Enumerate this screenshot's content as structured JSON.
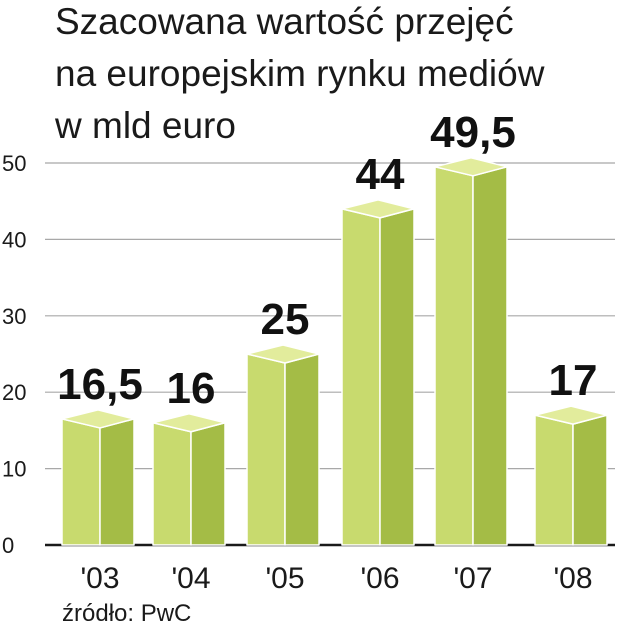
{
  "chart_data": {
    "type": "bar",
    "title_lines": [
      "Szacowana wartość przejęć",
      "na europejskim rynku mediów",
      "w mld euro"
    ],
    "categories": [
      "'03",
      "'04",
      "'05",
      "'06",
      "'07",
      "'08"
    ],
    "values": [
      16.5,
      16,
      25,
      44,
      49.5,
      17
    ],
    "value_labels": [
      "16,5",
      "16",
      "25",
      "44",
      "49,5",
      "17"
    ],
    "yticks": [
      "0",
      "10",
      "20",
      "30",
      "40",
      "50"
    ],
    "ylim": [
      0,
      50
    ],
    "xlabel": "",
    "ylabel": "",
    "grid": true,
    "source": "źródło: PwC",
    "colors": {
      "front": "#c8da6e",
      "side": "#a4bc46",
      "top": "#e2ec9c",
      "edge": "#ffffff",
      "grid": "#a8a8a8",
      "axis": "#1a1a1a"
    }
  }
}
